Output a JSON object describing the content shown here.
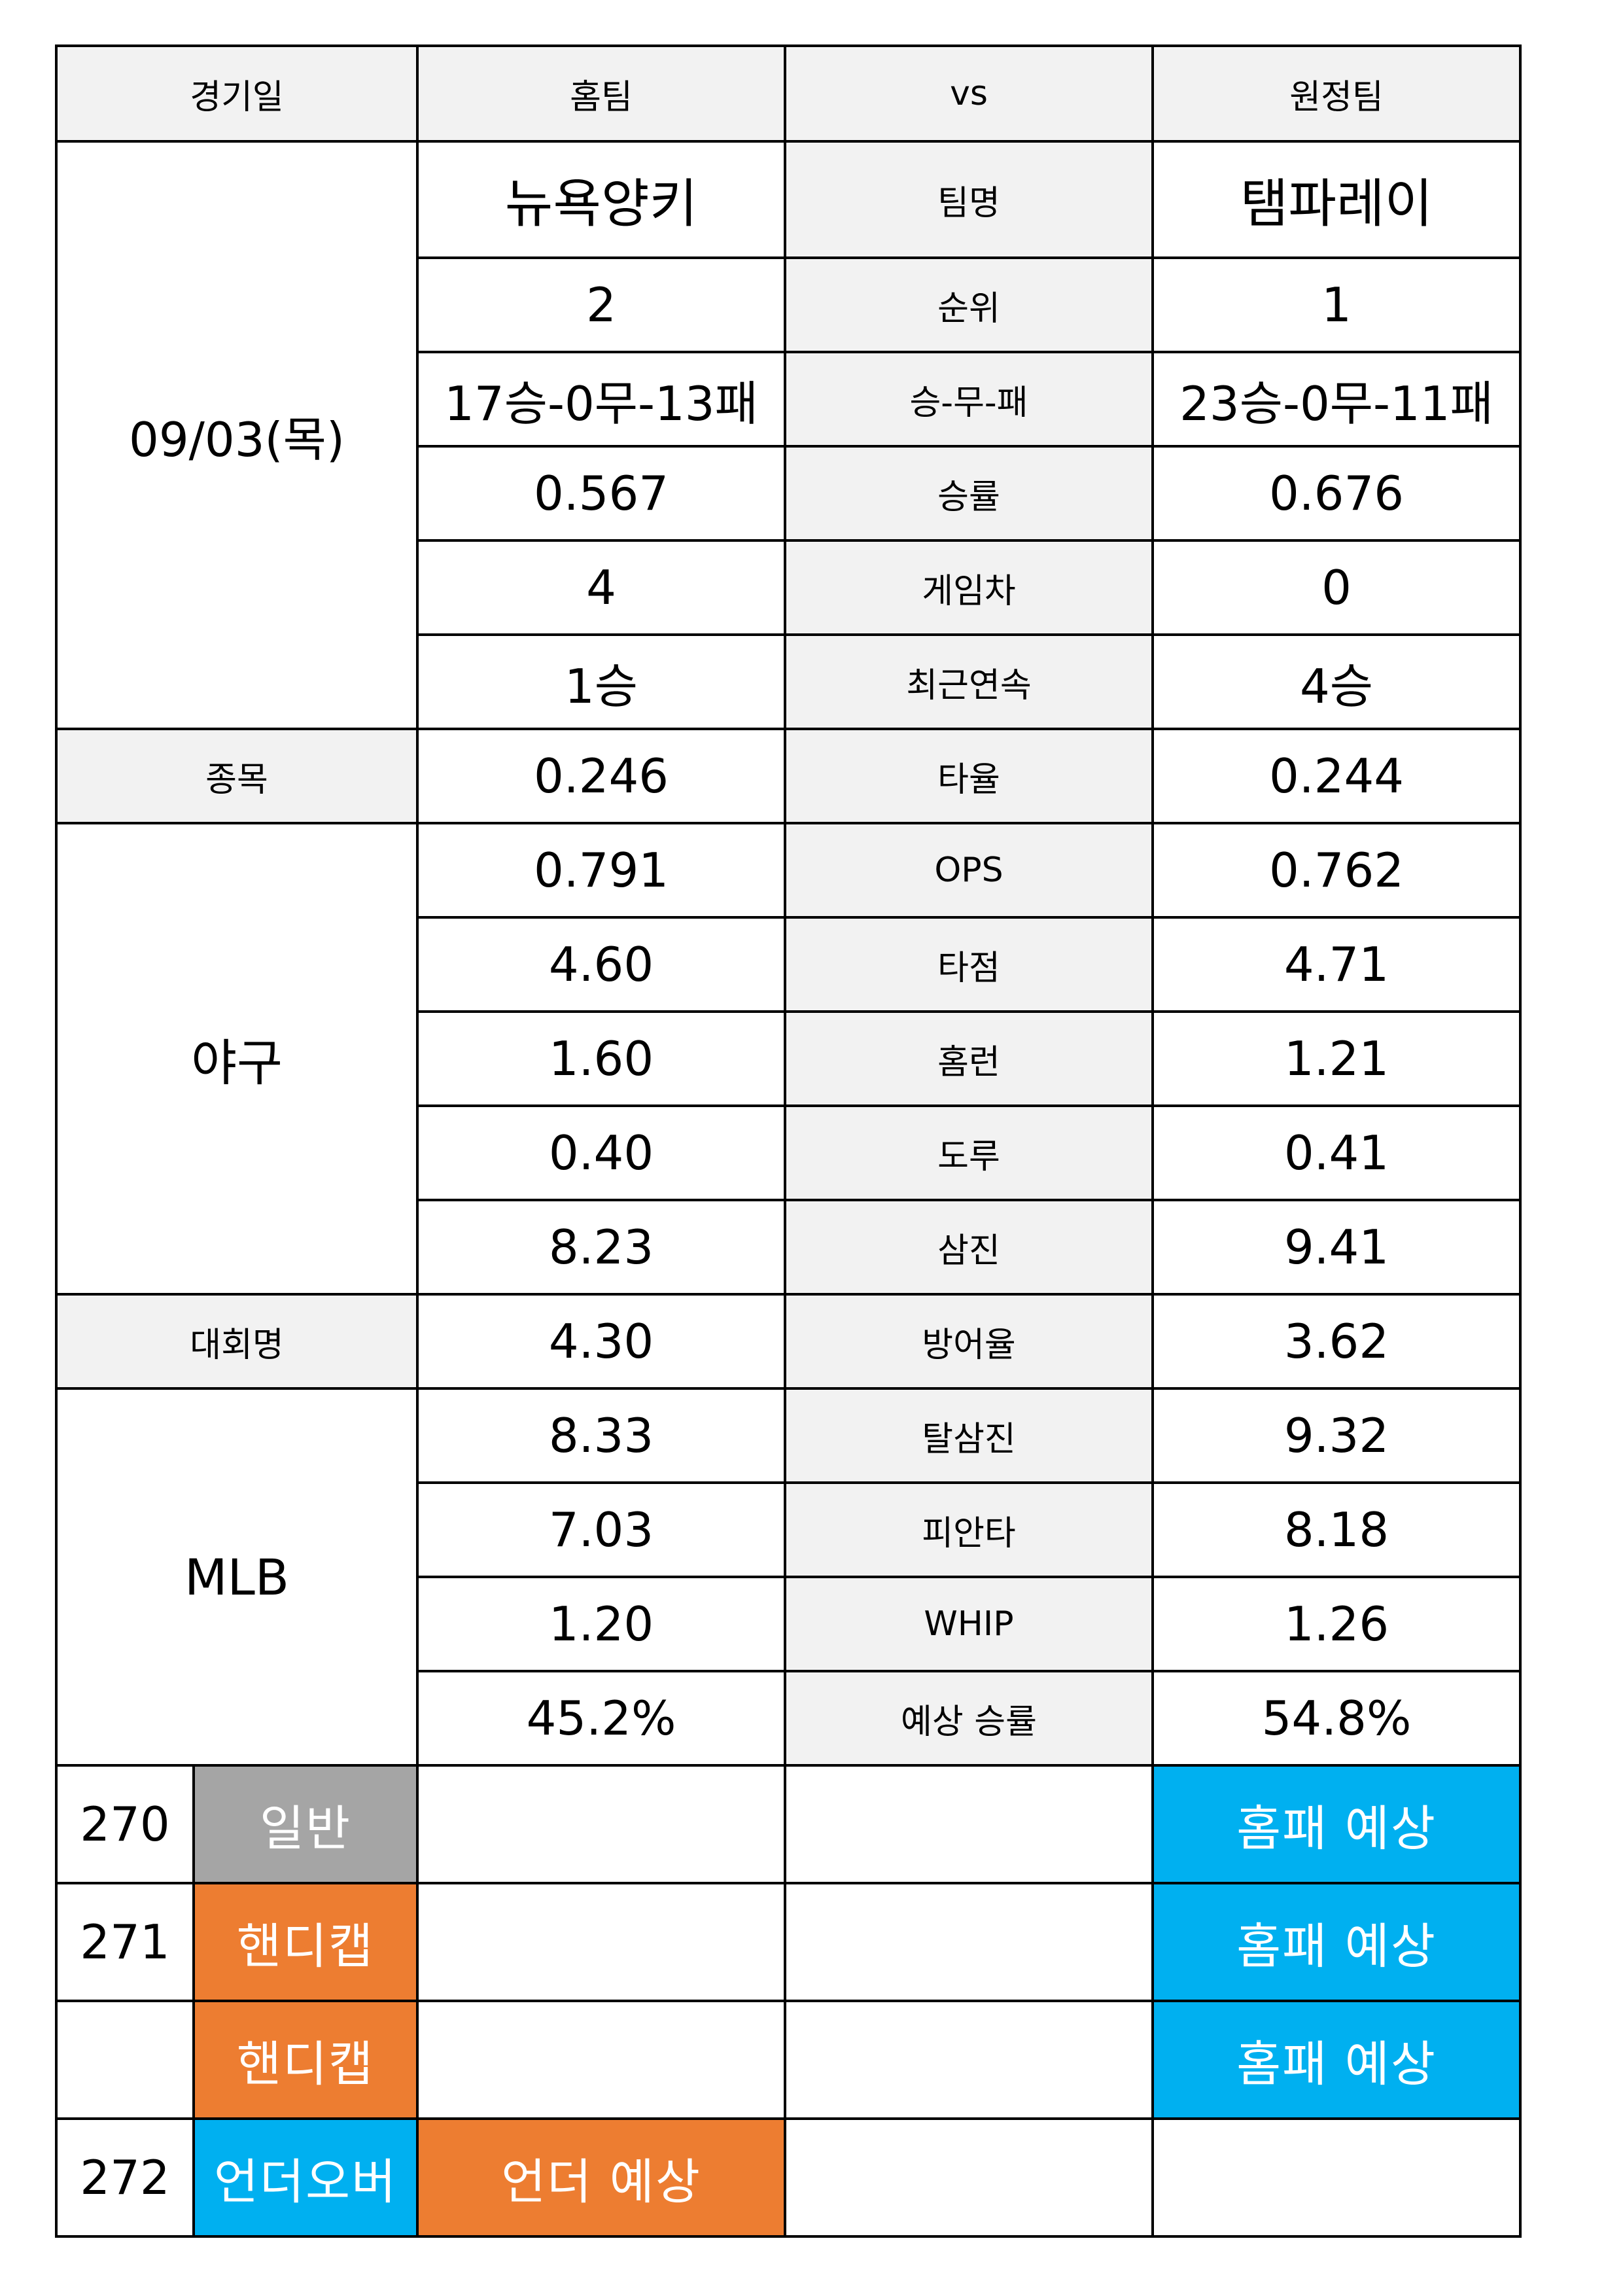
{
  "header": {
    "date_label": "경기일",
    "home_label": "홈팀",
    "vs_label": "vs",
    "away_label": "원정팀"
  },
  "left": {
    "date": "09/03(목)",
    "sport_label": "종목",
    "sport": "야구",
    "league_label": "대회명",
    "league": "MLB"
  },
  "teams": {
    "label": "팀명",
    "home": "뉴욕양키",
    "away": "탬파레이"
  },
  "stats": [
    {
      "label": "순위",
      "home": "2",
      "away": "1"
    },
    {
      "label": "승-무-패",
      "home": "17승-0무-13패",
      "away": "23승-0무-11패"
    },
    {
      "label": "승률",
      "home": "0.567",
      "away": "0.676"
    },
    {
      "label": "게임차",
      "home": "4",
      "away": "0"
    },
    {
      "label": "최근연속",
      "home": "1승",
      "away": "4승"
    },
    {
      "label": "타율",
      "home": "0.246",
      "away": "0.244"
    },
    {
      "label": "OPS",
      "home": "0.791",
      "away": "0.762"
    },
    {
      "label": "타점",
      "home": "4.60",
      "away": "4.71"
    },
    {
      "label": "홈런",
      "home": "1.60",
      "away": "1.21"
    },
    {
      "label": "도루",
      "home": "0.40",
      "away": "0.41"
    },
    {
      "label": "삼진",
      "home": "8.23",
      "away": "9.41"
    },
    {
      "label": "방어율",
      "home": "4.30",
      "away": "3.62"
    },
    {
      "label": "탈삼진",
      "home": "8.33",
      "away": "9.32"
    },
    {
      "label": "피안타",
      "home": "7.03",
      "away": "8.18"
    },
    {
      "label": "WHIP",
      "home": "1.20",
      "away": "1.26"
    },
    {
      "label": "예상 승률",
      "home": "45.2%",
      "away": "54.8%"
    }
  ],
  "predictions": [
    {
      "number": "270",
      "type": "일반",
      "type_color": "#a5a5a5",
      "home": "",
      "mid": "",
      "away": "홈패 예상",
      "away_color": "#00b0f0"
    },
    {
      "number": "271",
      "type": "핸디캡",
      "type_color": "#ed7d31",
      "home": "",
      "mid": "",
      "away": "홈패 예상",
      "away_color": "#00b0f0"
    },
    {
      "number": "",
      "type": "핸디캡",
      "type_color": "#ed7d31",
      "home": "",
      "mid": "",
      "away": "홈패 예상",
      "away_color": "#00b0f0"
    },
    {
      "number": "272",
      "type": "언더오버",
      "type_color": "#00b0f0",
      "home": "언더 예상",
      "home_color": "#ed7d31",
      "mid": "",
      "away": ""
    }
  ]
}
